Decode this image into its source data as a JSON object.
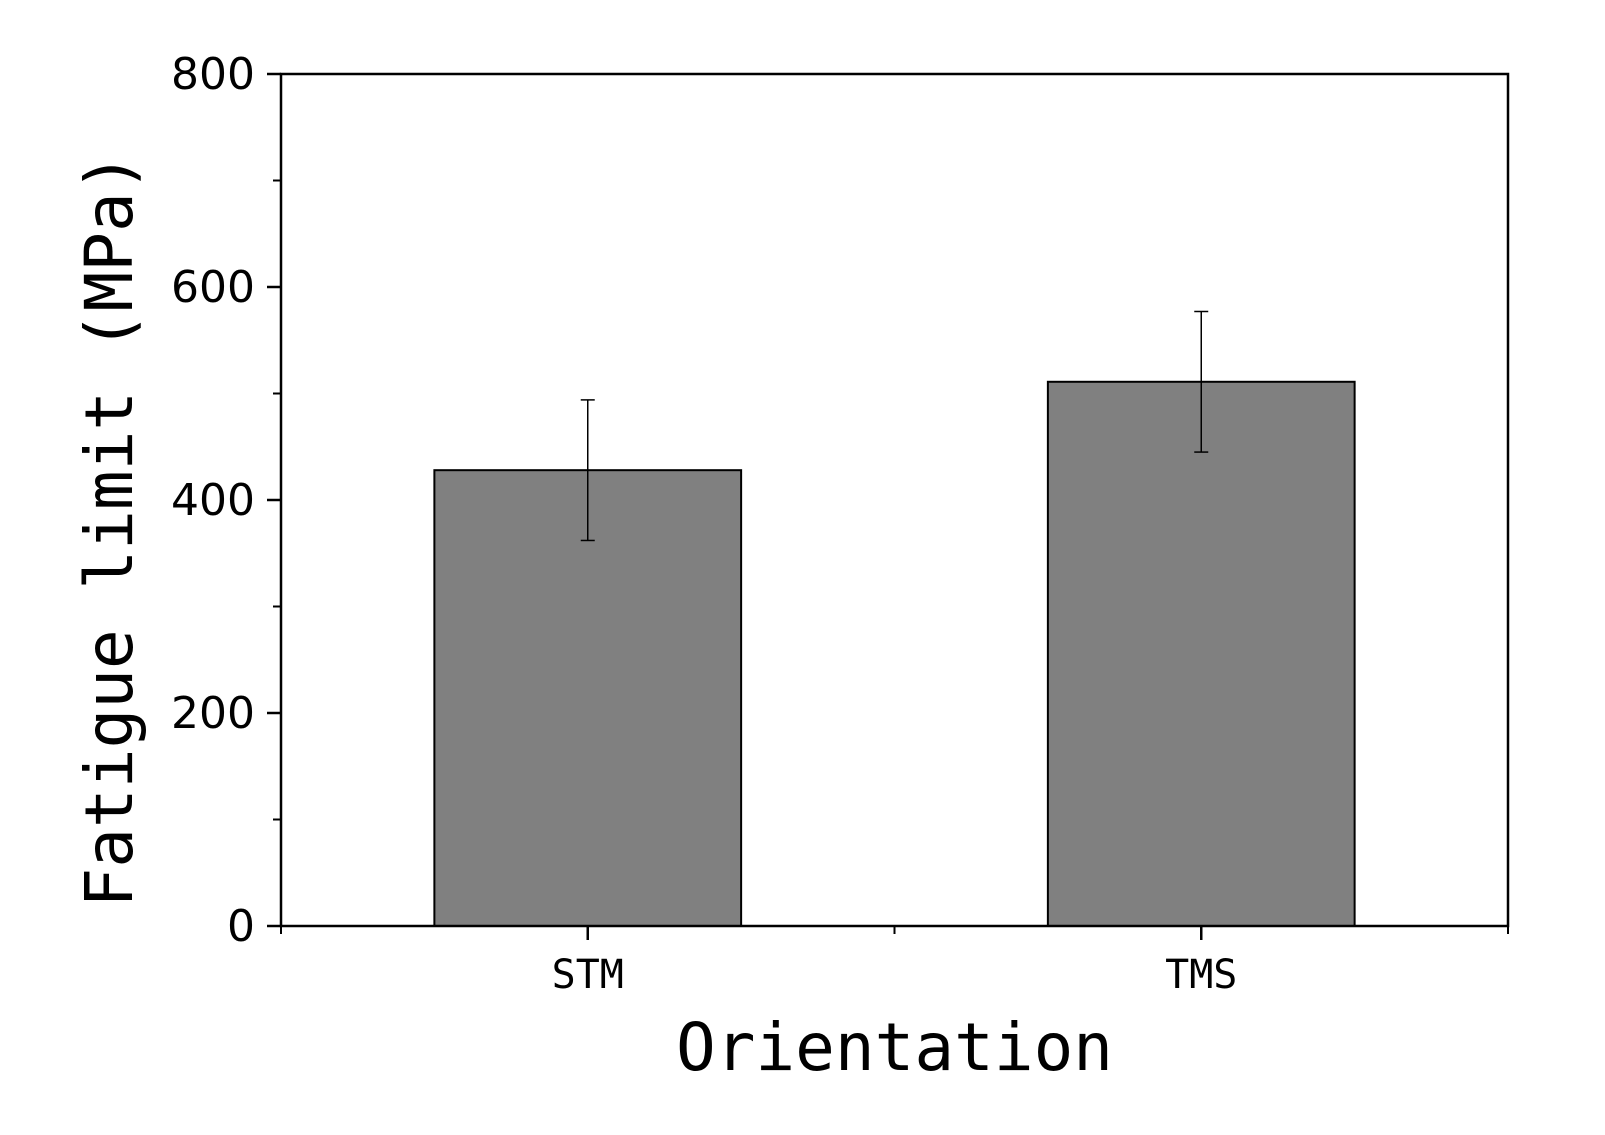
{
  "chart_data": {
    "type": "bar",
    "title": "",
    "xlabel": "Orientation",
    "ylabel": "Fatigue limit (MPa)",
    "categories": [
      "STM",
      "TMS"
    ],
    "values": [
      428,
      511
    ],
    "errors": [
      66,
      66
    ],
    "ylim": [
      0,
      800
    ],
    "yticks": [
      0,
      200,
      400,
      600,
      800
    ],
    "ytick_labels": [
      "0",
      "200",
      "400",
      "600",
      "800"
    ],
    "y_minor_step": 100,
    "bar_color": "#808080",
    "grid": false,
    "legend": "none"
  }
}
